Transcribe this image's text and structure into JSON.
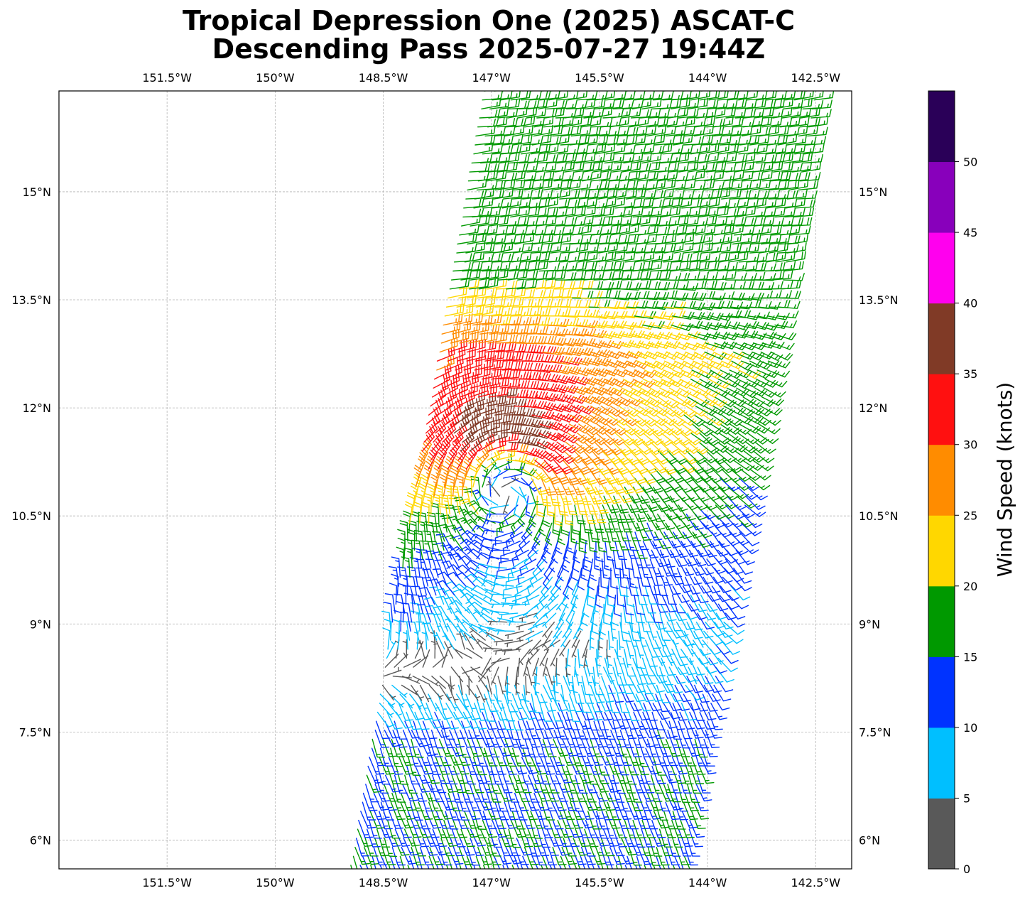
{
  "title": {
    "line1": "Tropical Depression One (2025) ASCAT-C",
    "line2": "Descending Pass 2025-07-27 19:44Z"
  },
  "map": {
    "lon_range": [
      -153.0,
      -142.0
    ],
    "lat_range": [
      5.6,
      16.4
    ],
    "lon_ticks": [
      -151.5,
      -150,
      -148.5,
      -147,
      -145.5,
      -144,
      -142.5
    ],
    "lon_tick_labels": [
      "151.5°W",
      "150°W",
      "148.5°W",
      "147°W",
      "145.5°W",
      "144°W",
      "142.5°W"
    ],
    "lat_ticks": [
      6,
      7.5,
      9,
      10.5,
      12,
      13.5,
      15
    ],
    "lat_tick_labels": [
      "6°N",
      "7.5°N",
      "9°N",
      "10.5°N",
      "12°N",
      "13.5°N",
      "15°N"
    ],
    "grid": true,
    "storm_center": {
      "lon": -146.85,
      "lat": 11.05
    }
  },
  "colorbar": {
    "label": "Wind Speed (knots)",
    "ticks": [
      0,
      5,
      10,
      15,
      20,
      25,
      30,
      35,
      40,
      45,
      50
    ],
    "tick_labels": [
      "0",
      "5",
      "10",
      "15",
      "20",
      "25",
      "30",
      "35",
      "40",
      "45",
      "50"
    ],
    "colors": [
      "#595959",
      "#00bfff",
      "#0033ff",
      "#009900",
      "#ffd700",
      "#ff8c00",
      "#ff1010",
      "#803a26",
      "#ff00ee",
      "#8800bb",
      "#2a0058"
    ],
    "max": 55
  }
}
